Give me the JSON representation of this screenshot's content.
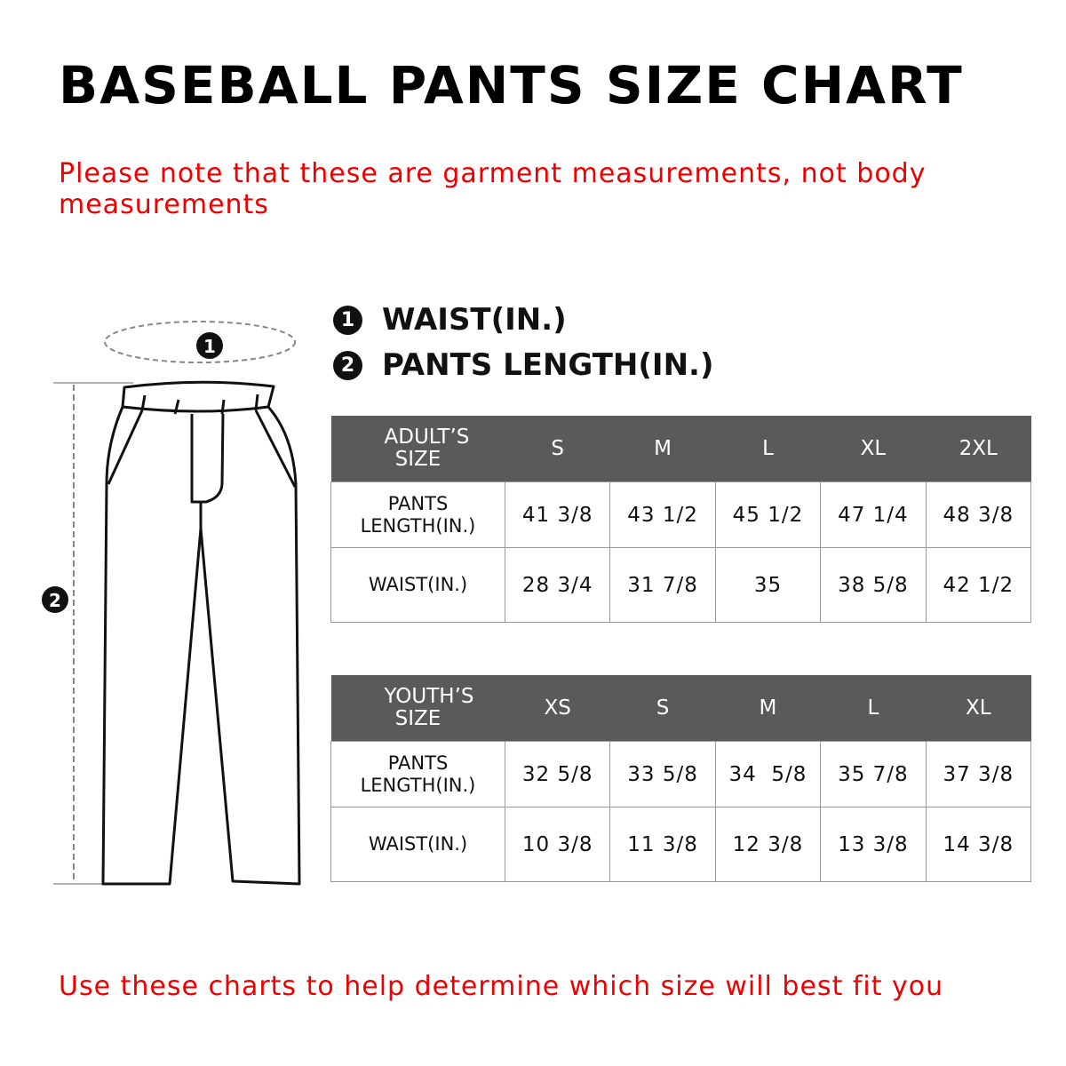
{
  "title": "BASEBALL PANTS SIZE CHART",
  "note": "Please note that these are garment measurements, not body measurements",
  "legend": [
    {
      "number": "1",
      "label": "WAIST(IN.)"
    },
    {
      "number": "2",
      "label": "PANTS LENGTH(IN.)"
    }
  ],
  "illustration": {
    "waist_marker": "1",
    "length_marker": "2"
  },
  "adult_table": {
    "header": [
      "ADULT’S SIZE",
      "S",
      "M",
      "L",
      "XL",
      "2XL"
    ],
    "rows": [
      {
        "label": "PANTS LENGTH(IN.)",
        "values": [
          "41 3/8",
          "43 1/2",
          "45 1/2",
          "47 1/4",
          "48 3/8"
        ]
      },
      {
        "label": "WAIST(IN.)",
        "values": [
          "28 3/4",
          "31 7/8",
          "35",
          "38 5/8",
          "42 1/2"
        ]
      }
    ]
  },
  "youth_table": {
    "header": [
      "YOUTH’S SIZE",
      "XS",
      "S",
      "M",
      "L",
      "XL"
    ],
    "rows": [
      {
        "label": "PANTS LENGTH(IN.)",
        "values": [
          "32 5/8",
          "33 5/8",
          "34  5/8",
          "35 7/8",
          "37 3/8"
        ]
      },
      {
        "label": "WAIST(IN.)",
        "values": [
          "10 3/8",
          "11 3/8",
          "12 3/8",
          "13 3/8",
          "14 3/8"
        ]
      }
    ]
  },
  "bottom_note": "Use these charts to help determine which size will best fit you",
  "colors": {
    "accent_red": "#ee0000",
    "table_header": "#5a5a5a"
  }
}
